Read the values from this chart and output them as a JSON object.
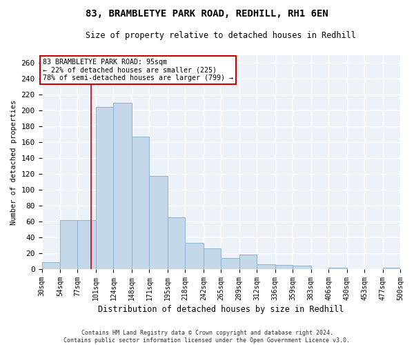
{
  "title": "83, BRAMBLETYE PARK ROAD, REDHILL, RH1 6EN",
  "subtitle": "Size of property relative to detached houses in Redhill",
  "xlabel": "Distribution of detached houses by size in Redhill",
  "ylabel": "Number of detached properties",
  "bar_color": "#c5d8ea",
  "bar_edge_color": "#8ab4d0",
  "background_color": "#edf2f8",
  "grid_color": "#ffffff",
  "annotation_box_color": "#ffffff",
  "annotation_box_edge": "#cc0000",
  "vline_color": "#cc0000",
  "footer": "Contains HM Land Registry data © Crown copyright and database right 2024.\nContains public sector information licensed under the Open Government Licence v3.0.",
  "property_sqm": 95,
  "annotation_text": "83 BRAMBLETYE PARK ROAD: 95sqm\n← 22% of detached houses are smaller (225)\n78% of semi-detached houses are larger (799) →",
  "bin_edges": [
    30,
    54,
    77,
    101,
    124,
    148,
    171,
    195,
    218,
    242,
    265,
    289,
    312,
    336,
    359,
    383,
    406,
    430,
    453,
    477,
    500
  ],
  "bin_labels": [
    "30sqm",
    "54sqm",
    "77sqm",
    "101sqm",
    "124sqm",
    "148sqm",
    "171sqm",
    "195sqm",
    "218sqm",
    "242sqm",
    "265sqm",
    "289sqm",
    "312sqm",
    "336sqm",
    "359sqm",
    "383sqm",
    "406sqm",
    "430sqm",
    "453sqm",
    "477sqm",
    "500sqm"
  ],
  "bar_heights": [
    9,
    62,
    62,
    205,
    210,
    167,
    118,
    65,
    33,
    26,
    14,
    18,
    6,
    5,
    4,
    0,
    2,
    0,
    0,
    2
  ],
  "ylim": [
    0,
    270
  ],
  "yticks": [
    0,
    20,
    40,
    60,
    80,
    100,
    120,
    140,
    160,
    180,
    200,
    220,
    240,
    260
  ]
}
